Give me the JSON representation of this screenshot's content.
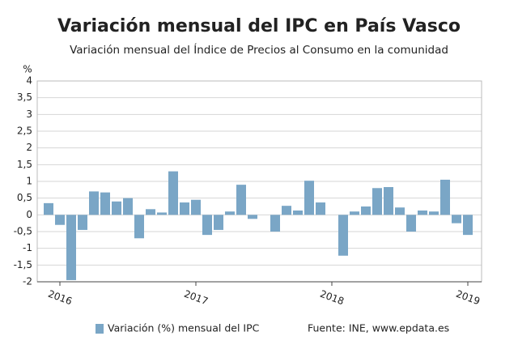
{
  "chart_data": {
    "type": "bar",
    "title": "Variación mensual del IPC en País Vasco",
    "subtitle": "Variación mensual del Índice de Precios al Consumo en la comunidad",
    "y_unit": "%",
    "source": "Fuente: INE, www.epdata.es",
    "categories": [
      null,
      "2016",
      null,
      null,
      null,
      null,
      null,
      null,
      null,
      null,
      null,
      null,
      null,
      "2017",
      null,
      null,
      null,
      null,
      null,
      null,
      null,
      null,
      null,
      null,
      null,
      "2018",
      null,
      null,
      null,
      null,
      null,
      null,
      null,
      null,
      null,
      null,
      null,
      "2019"
    ],
    "series": [
      {
        "name": "Variación (%) mensual del IPC",
        "color": "#7aa6c6",
        "values": [
          0.35,
          -0.3,
          -1.95,
          -0.45,
          0.7,
          0.67,
          0.4,
          0.5,
          -0.7,
          0.17,
          0.07,
          1.3,
          0.37,
          0.45,
          -0.6,
          -0.45,
          0.1,
          0.9,
          -0.12,
          0,
          -0.5,
          0.27,
          0.13,
          1.02,
          0.37,
          0,
          -1.22,
          0.1,
          0.25,
          0.8,
          0.83,
          0.22,
          -0.5,
          0.13,
          0.1,
          1.05,
          -0.25,
          -0.6
        ]
      }
    ],
    "ylim": [
      -2,
      4
    ],
    "yticks": [
      -2,
      {
        "value": -1.5,
        "label": "-1,5"
      },
      -1,
      {
        "value": -0.5,
        "label": "-0,5"
      },
      0,
      {
        "value": 0.5,
        "label": "0,5"
      },
      1,
      {
        "value": 1.5,
        "label": "1,5"
      },
      2,
      {
        "value": 2.5,
        "label": "2,5"
      },
      3,
      {
        "value": 3.5,
        "label": "3,5"
      },
      4
    ],
    "grid": true
  }
}
